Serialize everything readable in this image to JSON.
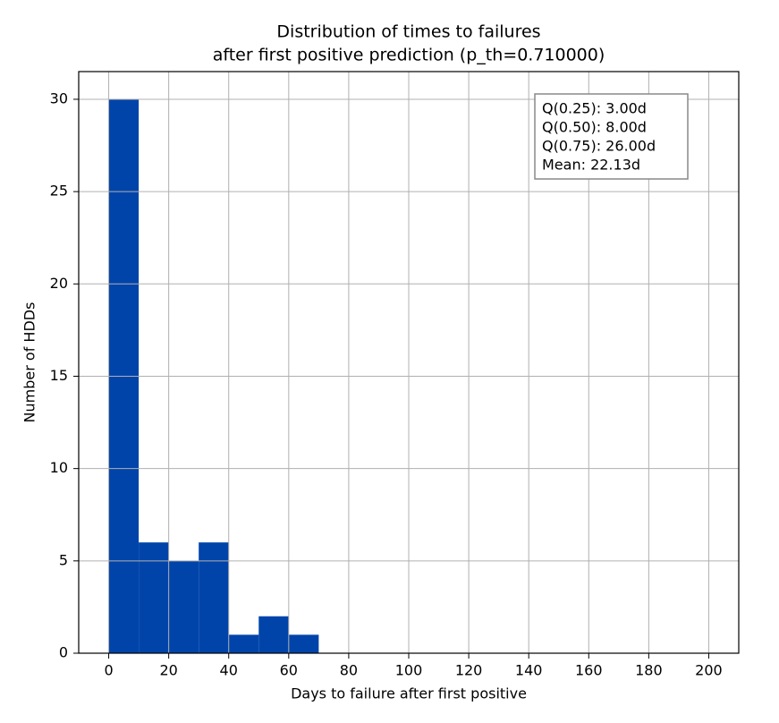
{
  "chart_data": {
    "type": "histogram",
    "title": [
      "Distribution of times to failures",
      "after first positive prediction (p_th=0.710000)"
    ],
    "x_label": "Days to failure after first positive",
    "y_label": "Number of HDDs",
    "bins": [
      0,
      10,
      20,
      30,
      40,
      50,
      60,
      70,
      80,
      90,
      100,
      110,
      120,
      130,
      140,
      150,
      160,
      170,
      180,
      190,
      200
    ],
    "counts": [
      30,
      6,
      5,
      6,
      1,
      2,
      1,
      0,
      0,
      0,
      0,
      0,
      0,
      0,
      0,
      0,
      0,
      0,
      0,
      0
    ],
    "color": "#0044aa",
    "xlim": [
      -10,
      210
    ],
    "ylim": [
      0,
      31.5
    ],
    "xticks": [
      0,
      20,
      40,
      60,
      80,
      100,
      120,
      140,
      160,
      180,
      200
    ],
    "yticks": [
      0,
      5,
      10,
      15,
      20,
      25,
      30
    ],
    "grid": true,
    "annotation": [
      "Q(0.25): 3.00d",
      "Q(0.50): 8.00d",
      "Q(0.75): 26.00d",
      "Mean: 22.13d"
    ]
  }
}
